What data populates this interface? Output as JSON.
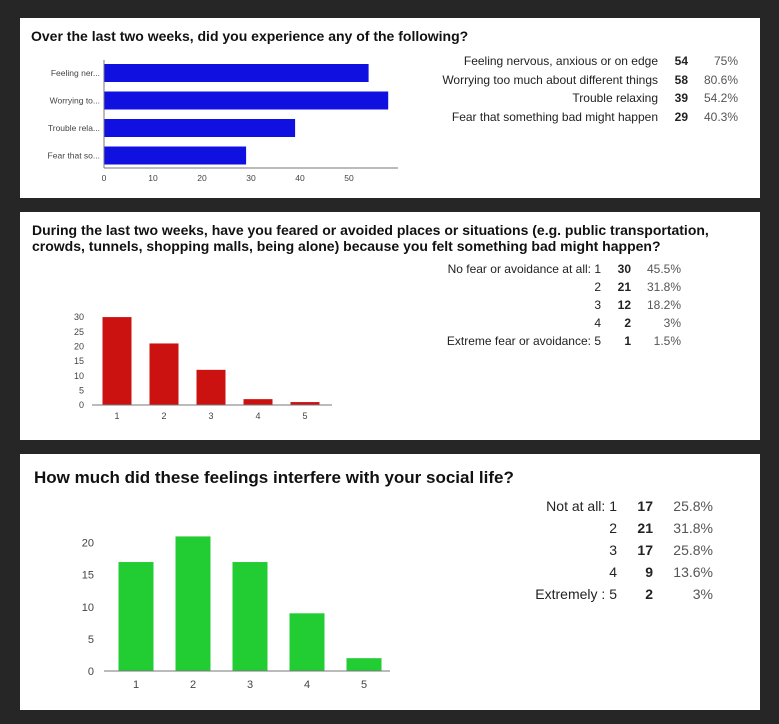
{
  "colors": {
    "bar1": "#1010e0",
    "bar2": "#cc1111",
    "bar3": "#22cc33",
    "axis": "#777777",
    "tick": "#444444"
  },
  "q1": {
    "title": "Over the last two weeks, did you experience any of the following?",
    "rows": [
      {
        "label": "Feeling nervous, anxious or on edge",
        "count": "54",
        "pct": "75%"
      },
      {
        "label": "Worrying too much about different things",
        "count": "58",
        "pct": "80.6%"
      },
      {
        "label": "Trouble relaxing",
        "count": "39",
        "pct": "54.2%"
      },
      {
        "label": "Fear that something bad might happen",
        "count": "29",
        "pct": "40.3%"
      }
    ]
  },
  "q2": {
    "title": "During the last two weeks, have you feared or avoided places or situations (e.g. public transportation, crowds, tunnels, shopping malls, being alone) because you felt something bad might happen?",
    "rows": [
      {
        "label": "No fear or avoidance at all: 1",
        "count": "30",
        "pct": "45.5%"
      },
      {
        "label": "2",
        "count": "21",
        "pct": "31.8%"
      },
      {
        "label": "3",
        "count": "12",
        "pct": "18.2%"
      },
      {
        "label": "4",
        "count": "2",
        "pct": "3%"
      },
      {
        "label": "Extreme fear or avoidance: 5",
        "count": "1",
        "pct": "1.5%"
      }
    ]
  },
  "q3": {
    "title": "How much did these feelings interfere with your social life?",
    "rows": [
      {
        "label": "Not at all: 1",
        "count": "17",
        "pct": "25.8%"
      },
      {
        "label": "2",
        "count": "21",
        "pct": "31.8%"
      },
      {
        "label": "3",
        "count": "17",
        "pct": "25.8%"
      },
      {
        "label": "4",
        "count": "9",
        "pct": "13.6%"
      },
      {
        "label": "Extremely : 5",
        "count": "2",
        "pct": "3%"
      }
    ]
  },
  "chart_data": [
    {
      "type": "bar",
      "orientation": "horizontal",
      "categories": [
        "Feeling ner...",
        "Worrying to...",
        "Trouble rela...",
        "Fear that so..."
      ],
      "values": [
        54,
        58,
        39,
        29
      ],
      "xlim": [
        0,
        60
      ],
      "xticks": [
        0,
        10,
        20,
        30,
        40,
        50
      ]
    },
    {
      "type": "bar",
      "categories": [
        "1",
        "2",
        "3",
        "4",
        "5"
      ],
      "values": [
        30,
        21,
        12,
        2,
        1
      ],
      "ylim": [
        0,
        33
      ],
      "yticks": [
        0,
        5,
        10,
        15,
        20,
        25,
        30
      ]
    },
    {
      "type": "bar",
      "categories": [
        "1",
        "2",
        "3",
        "4",
        "5"
      ],
      "values": [
        17,
        21,
        17,
        9,
        2
      ],
      "ylim": [
        0,
        22
      ],
      "yticks": [
        0,
        5,
        10,
        15,
        20
      ]
    }
  ]
}
